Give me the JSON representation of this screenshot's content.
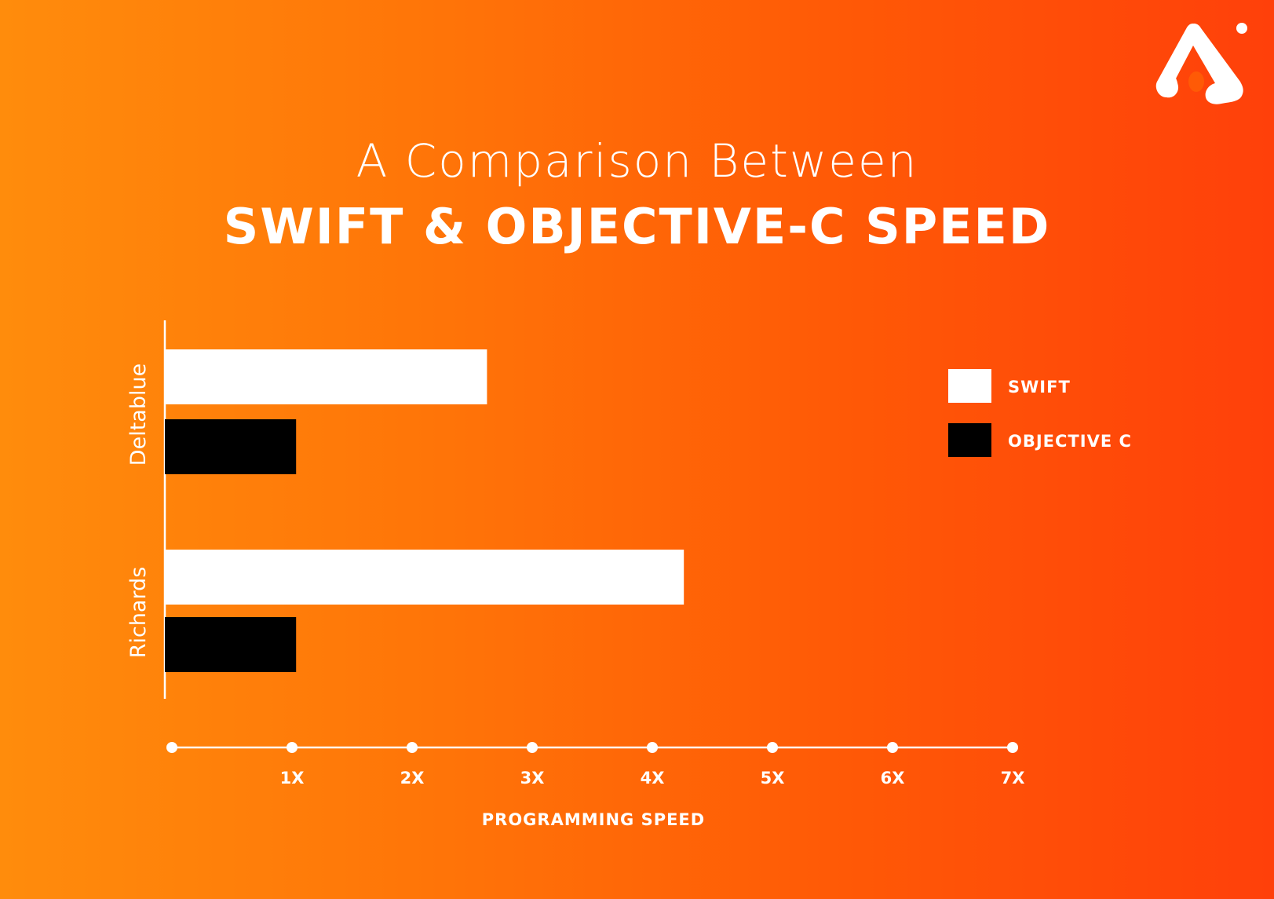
{
  "header": {
    "title_line1": "A Comparison Between",
    "title_line2": "SWIFT & OBJECTIVE-C SPEED"
  },
  "colors": {
    "background_start": "#ff8c0c",
    "background_end": "#ff400a",
    "swift": "#ffffff",
    "objective_c": "#000000",
    "text": "#ffffff"
  },
  "chart_data": {
    "type": "bar",
    "orientation": "horizontal",
    "categories": [
      "Deltablue",
      "Richards"
    ],
    "series": [
      {
        "name": "SWIFT",
        "values": [
          2.7,
          4.35
        ],
        "color": "#ffffff"
      },
      {
        "name": "OBJECTIVE C",
        "values": [
          1.1,
          1.1
        ],
        "color": "#000000"
      }
    ],
    "x_ticks": [
      "1X",
      "2X",
      "3X",
      "4X",
      "5X",
      "6X",
      "7X"
    ],
    "x_tick_values": [
      1,
      2,
      3,
      4,
      5,
      6,
      7
    ],
    "xlabel": "PROGRAMMING SPEED",
    "ylabel": "",
    "xlim": [
      0,
      7
    ],
    "grid": false,
    "legend_position": "right"
  }
}
